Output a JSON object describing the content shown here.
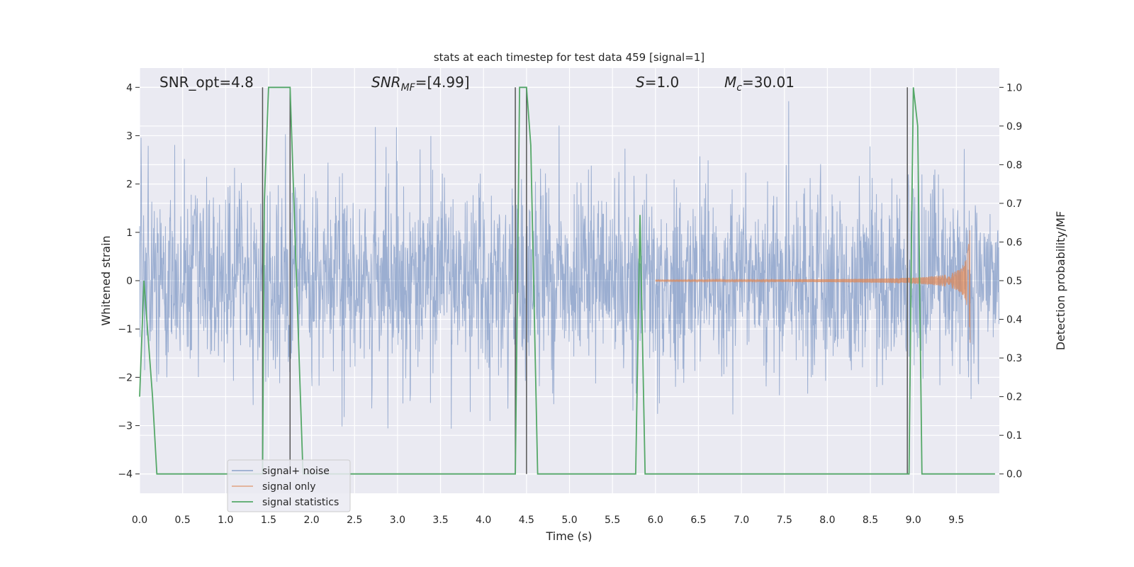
{
  "chart_data": {
    "type": "line",
    "title": "stats at each timestep for test data 459 [signal=1]",
    "xlabel": "Time (s)",
    "ylabel_left": "Whitened strain",
    "ylabel_right": "Detection probability/MF",
    "xlim": [
      0.0,
      10.0
    ],
    "ylim_left": [
      -4.4,
      4.4
    ],
    "ylim_right": [
      -0.05,
      1.05
    ],
    "x_ticks": [
      "0.0",
      "0.5",
      "1.0",
      "1.5",
      "2.0",
      "2.5",
      "3.0",
      "3.5",
      "4.0",
      "4.5",
      "5.0",
      "5.5",
      "6.0",
      "6.5",
      "7.0",
      "7.5",
      "8.0",
      "8.5",
      "9.0",
      "9.5"
    ],
    "y_ticks_left": [
      "4",
      "3",
      "2",
      "1",
      "0",
      "−1",
      "−2",
      "−3",
      "−4"
    ],
    "y_ticks_right": [
      "1.0",
      "0.9",
      "0.8",
      "0.7",
      "0.6",
      "0.5",
      "0.4",
      "0.3",
      "0.2",
      "0.1",
      "0.0"
    ],
    "annotations": {
      "snr_opt": "SNR_opt=4.8",
      "snr_mf_base": "SNR",
      "snr_mf_sub": "MF",
      "snr_mf_value": "=[4.99]",
      "s_sym": "S",
      "s_value": "=1.0",
      "mc_sym": "M",
      "mc_sub": "c",
      "mc_value": "=30.01"
    },
    "legend": {
      "placement": "lower-left",
      "entries": [
        "signal+ noise",
        "signal only",
        "signal statistics"
      ]
    },
    "grid": true,
    "colors": {
      "signal_noise": "#4c72b0",
      "signal_only": "#dd8452",
      "statistics": "#55a868",
      "vlines": "#555555",
      "background": "#eaeaf2"
    },
    "signal_noise": {
      "amplitude_envelope": 3.8,
      "duration_s": 10.0
    },
    "signal_only": {
      "chirp_start_s": 6.0,
      "merger_s": 9.66,
      "peak_amplitude": 1.3
    },
    "statistics": {
      "x": [
        0.0,
        0.05,
        0.15,
        0.2,
        0.25,
        1.43,
        1.45,
        1.5,
        1.75,
        1.9,
        2.0,
        4.37,
        4.42,
        4.5,
        4.55,
        4.63,
        5.77,
        5.82,
        5.88,
        8.95,
        8.98,
        9.0,
        9.05,
        9.1,
        9.95
      ],
      "y": [
        0.2,
        0.5,
        0.2,
        0.0,
        0.0,
        0.0,
        0.7,
        1.0,
        1.0,
        0.0,
        0.0,
        0.0,
        1.0,
        1.0,
        0.85,
        0.0,
        0.0,
        0.67,
        0.0,
        0.0,
        0.65,
        1.0,
        0.9,
        0.0,
        0.0
      ]
    },
    "vertical_lines_x": [
      1.43,
      1.75,
      4.37,
      4.5,
      8.93
    ],
    "vertical_lines_range_right": [
      0.0,
      1.0
    ]
  }
}
